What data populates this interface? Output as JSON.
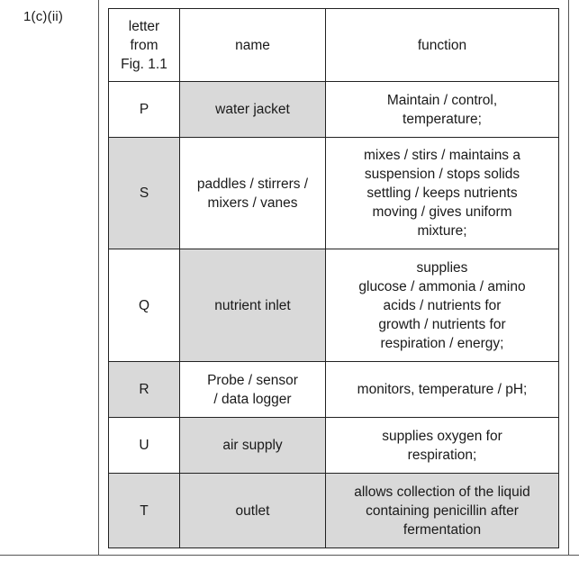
{
  "question_label": "1(c)(ii)",
  "headers": [
    "letter\nfrom\nFig. 1.1",
    "name",
    "function"
  ],
  "rows": [
    {
      "letter": "P",
      "name": "water jacket",
      "function": "Maintain / control,\ntemperature;"
    },
    {
      "letter": "S",
      "name": "paddles / stirrers /\nmixers / vanes",
      "function": "mixes / stirs / maintains a\nsuspension / stops solids\nsettling / keeps nutrients\nmoving / gives uniform\nmixture;"
    },
    {
      "letter": "Q",
      "name": "nutrient inlet",
      "function": "supplies\nglucose / ammonia / amino\nacids / nutrients for\ngrowth / nutrients for\nrespiration / energy;"
    },
    {
      "letter": "R",
      "name": "Probe / sensor\n/ data logger",
      "function": "monitors, temperature / pH;"
    },
    {
      "letter": "U",
      "name": "air supply",
      "function": "supplies oxygen for\nrespiration;"
    },
    {
      "letter": "T",
      "name": "outlet",
      "function": "allows collection of the liquid\ncontaining penicillin after\nfermentation"
    }
  ]
}
